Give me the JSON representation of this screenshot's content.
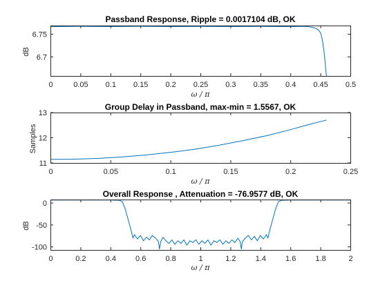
{
  "chart_data": [
    {
      "type": "line",
      "title": "Passband Response,  Ripple = 0.0017104 dB, OK",
      "xlabel": "ω / π",
      "ylabel": "dB",
      "xlim": [
        0,
        0.5
      ],
      "ylim": [
        6.658,
        6.769
      ],
      "xticks": [
        "0",
        "0.05",
        "0.1",
        "0.15",
        "0.2",
        "0.25",
        "0.3",
        "0.35",
        "0.4",
        "0.45",
        "0.5"
      ],
      "yticks": [
        "6.7",
        "6.75"
      ],
      "ytick_values": [
        6.7,
        6.75
      ],
      "grid": false,
      "series": [
        {
          "x": [
            0,
            0.05,
            0.1,
            0.15,
            0.2,
            0.25,
            0.3,
            0.35,
            0.4,
            0.42,
            0.43,
            0.44,
            0.445,
            0.45,
            0.452,
            0.454,
            0.456,
            0.458,
            0.46
          ],
          "y": [
            6.7665,
            6.7672,
            6.7668,
            6.7672,
            6.7667,
            6.7671,
            6.7668,
            6.7671,
            6.7666,
            6.7672,
            6.7665,
            6.764,
            6.761,
            6.754,
            6.745,
            6.732,
            6.712,
            6.688,
            6.658
          ]
        }
      ]
    },
    {
      "type": "line",
      "title": "Group Delay in Passband, max-min = 1.5567, OK",
      "xlabel": "ω / π",
      "ylabel": "Samples",
      "xlim": [
        0,
        0.25
      ],
      "ylim": [
        11,
        13
      ],
      "xticks": [
        "0",
        "0.05",
        "0.1",
        "0.15",
        "0.2",
        "0.25"
      ],
      "yticks": [
        "11",
        "12",
        "13"
      ],
      "ytick_values": [
        11,
        12,
        13
      ],
      "grid": false,
      "series": [
        {
          "x": [
            0,
            0.02,
            0.04,
            0.06,
            0.08,
            0.1,
            0.12,
            0.14,
            0.16,
            0.18,
            0.2,
            0.215,
            0.23
          ],
          "y": [
            11.14,
            11.15,
            11.18,
            11.24,
            11.32,
            11.42,
            11.54,
            11.7,
            11.88,
            12.08,
            12.32,
            12.52,
            12.7
          ]
        }
      ]
    },
    {
      "type": "line",
      "title": "Overall Response , Attenuation = -76.9577 dB, OK",
      "xlabel": "ω / π",
      "ylabel": "dB",
      "xlim": [
        0,
        2
      ],
      "ylim": [
        -107,
        8
      ],
      "xticks": [
        "0",
        "0.2",
        "0.4",
        "0.6",
        "0.8",
        "1",
        "1.2",
        "1.4",
        "1.6",
        "1.8",
        "2"
      ],
      "yticks": [
        "0",
        "-50",
        "-100"
      ],
      "ytick_values": [
        0,
        -50,
        -100
      ],
      "grid": false,
      "series": [
        {
          "x": [
            0,
            0.2,
            0.4,
            0.46,
            0.48,
            0.5,
            0.52,
            0.54,
            0.55,
            0.56,
            0.58,
            0.6,
            0.62,
            0.64,
            0.66,
            0.68,
            0.7,
            0.72,
            0.727,
            0.735,
            0.75,
            0.77,
            0.79,
            0.81,
            0.83,
            0.85,
            0.87,
            0.89,
            0.91,
            0.93,
            0.95,
            0.97,
            0.99,
            1.01,
            1.03,
            1.05,
            1.07,
            1.09,
            1.11,
            1.13,
            1.15,
            1.17,
            1.19,
            1.21,
            1.23,
            1.25,
            1.265,
            1.273,
            1.28,
            1.3,
            1.32,
            1.34,
            1.36,
            1.38,
            1.4,
            1.42,
            1.44,
            1.45,
            1.46,
            1.48,
            1.5,
            1.52,
            1.54,
            1.6,
            1.8,
            2
          ],
          "y": [
            6.77,
            6.77,
            6.77,
            6.2,
            3.0,
            -15,
            -40,
            -65,
            -80,
            -72,
            -82,
            -74,
            -86,
            -78,
            -84,
            -74,
            -80,
            -88,
            -105,
            -88,
            -78,
            -86,
            -92,
            -84,
            -94,
            -86,
            -92,
            -84,
            -96,
            -86,
            -90,
            -84,
            -94,
            -86,
            -92,
            -84,
            -96,
            -86,
            -90,
            -84,
            -94,
            -86,
            -92,
            -84,
            -90,
            -80,
            -88,
            -105,
            -88,
            -80,
            -74,
            -84,
            -76,
            -86,
            -74,
            -82,
            -72,
            -80,
            -65,
            -40,
            -15,
            3.0,
            6.2,
            6.77,
            6.77,
            6.77
          ]
        }
      ]
    }
  ]
}
